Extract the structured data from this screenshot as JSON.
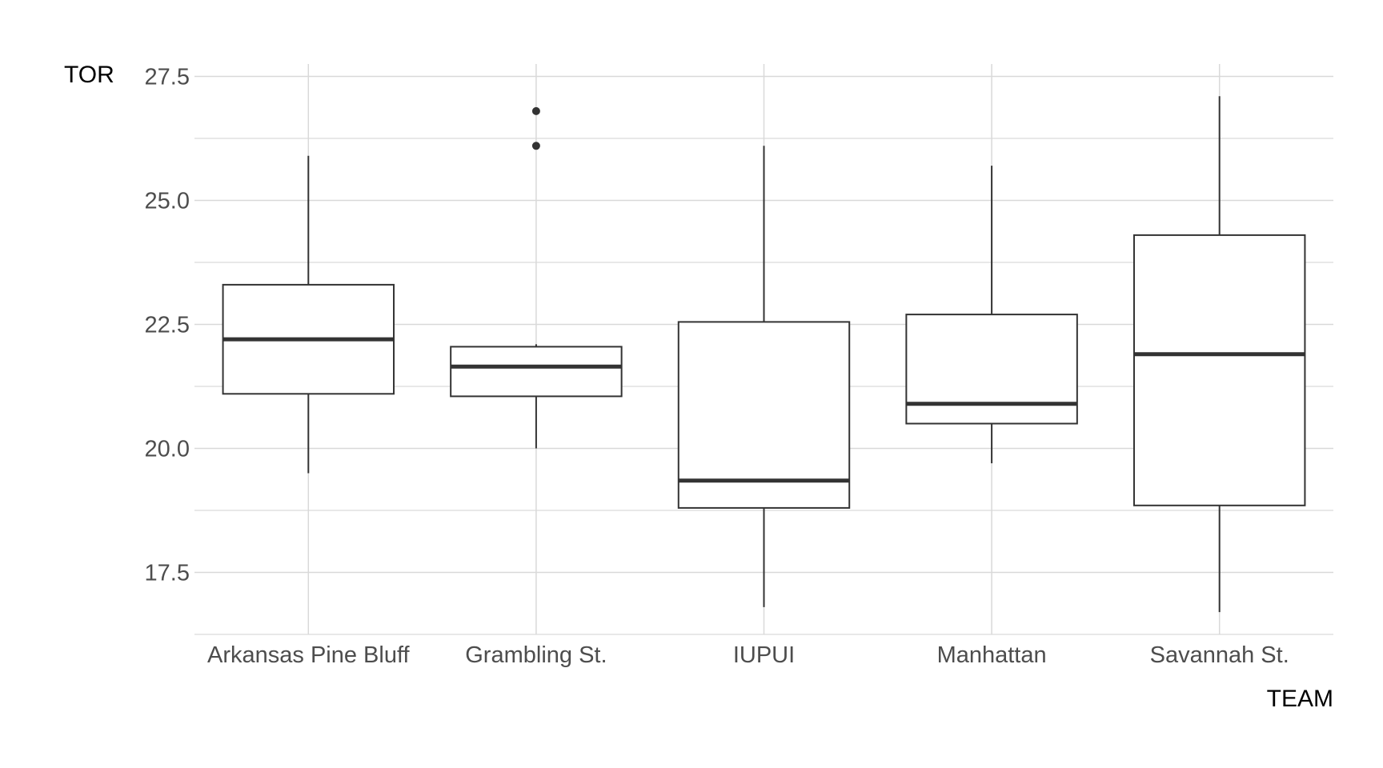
{
  "chart_data": {
    "type": "boxplot",
    "xlabel": "TEAM",
    "ylabel": "TOR",
    "ylim": [
      16.25,
      27.75
    ],
    "y_ticks": [
      17.5,
      20.0,
      22.5,
      25.0,
      27.5
    ],
    "y_tick_labels": [
      "17.5",
      "20.0",
      "22.5",
      "25.0",
      "27.5"
    ],
    "grid": true,
    "categories": [
      "Arkansas Pine Bluff",
      "Grambling St.",
      "IUPUI",
      "Manhattan",
      "Savannah St."
    ],
    "boxes": [
      {
        "category": "Arkansas Pine Bluff",
        "whisker_low": 19.5,
        "q1": 21.1,
        "median": 22.2,
        "q3": 23.3,
        "whisker_high": 25.9,
        "outliers": []
      },
      {
        "category": "Grambling St.",
        "whisker_low": 20.0,
        "q1": 21.05,
        "median": 21.65,
        "q3": 22.05,
        "whisker_high": 22.1,
        "outliers": [
          26.1,
          26.8
        ]
      },
      {
        "category": "IUPUI",
        "whisker_low": 16.8,
        "q1": 18.8,
        "median": 19.35,
        "q3": 22.55,
        "whisker_high": 26.1,
        "outliers": []
      },
      {
        "category": "Manhattan",
        "whisker_low": 19.7,
        "q1": 20.5,
        "median": 20.9,
        "q3": 22.7,
        "whisker_high": 25.7,
        "outliers": []
      },
      {
        "category": "Savannah St.",
        "whisker_low": 16.7,
        "q1": 18.85,
        "median": 21.9,
        "q3": 24.3,
        "whisker_high": 27.1,
        "outliers": []
      }
    ],
    "colors": {
      "box_stroke": "#333333",
      "grid": "#d9d9d9",
      "tick_text": "#4d4d4d",
      "title_text": "#000000"
    }
  }
}
